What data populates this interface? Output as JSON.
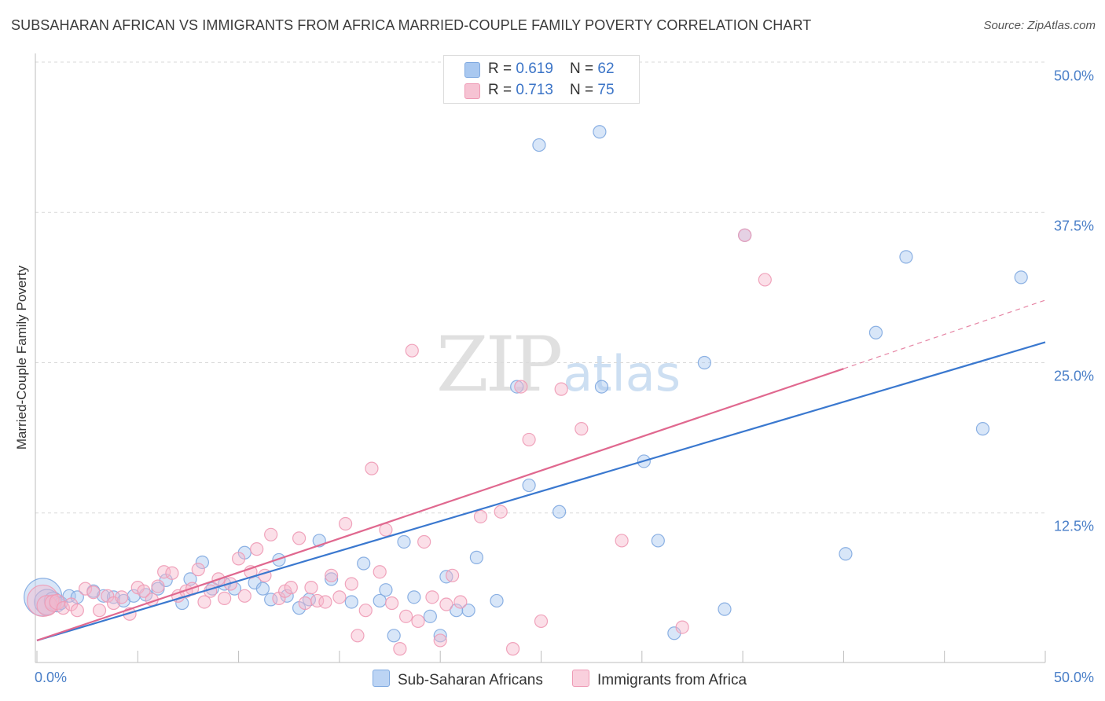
{
  "header": {
    "title": "SUBSAHARAN AFRICAN VS IMMIGRANTS FROM AFRICA MARRIED-COUPLE FAMILY POVERTY CORRELATION CHART",
    "source": "Source: ZipAtlas.com"
  },
  "legend_top": {
    "rows": [
      {
        "r_label": "R = ",
        "r_value": "0.619",
        "n_label": "N = ",
        "n_value": "62"
      },
      {
        "r_label": "R = ",
        "r_value": "0.713",
        "n_label": "N = ",
        "n_value": "75"
      }
    ]
  },
  "legend_bottom": {
    "series1": "Sub-Saharan Africans",
    "series2": "Immigrants from Africa"
  },
  "watermark": {
    "zip": "ZIP",
    "atlas": "atlas"
  },
  "chart_data": {
    "type": "scatter",
    "title": "SUBSAHARAN AFRICAN VS IMMIGRANTS FROM AFRICA MARRIED-COUPLE FAMILY POVERTY CORRELATION CHART",
    "xlabel": "",
    "ylabel": "Married-Couple Family Poverty",
    "xlim": [
      0,
      50
    ],
    "ylim": [
      0,
      50
    ],
    "x_tick_labels": [
      "0.0%",
      "50.0%"
    ],
    "y_ticks": [
      12.5,
      25.0,
      37.5,
      50.0
    ],
    "y_tick_labels": [
      "12.5%",
      "25.0%",
      "37.5%",
      "50.0%"
    ],
    "grid": true,
    "colors": {
      "series1": "#a9c8f0",
      "series1_line": "#3a78cf",
      "series2": "#f6b8cb",
      "series2_line": "#e0688f",
      "tick_text": "#4a7fc8"
    },
    "series": [
      {
        "name": "Sub-Saharan Africans",
        "r": 0.619,
        "n": 62,
        "trend": {
          "x0": 0,
          "y0": 1.9,
          "x1": 50,
          "y1": 26.7
        },
        "points": [
          [
            0.3,
            5.5,
            3
          ],
          [
            0.5,
            5.1,
            2
          ],
          [
            0.8,
            5.2,
            1.4
          ],
          [
            1.0,
            4.9,
            1.2
          ],
          [
            1.2,
            5.0,
            1
          ],
          [
            1.6,
            5.6,
            1
          ],
          [
            2.0,
            5.5,
            1
          ],
          [
            2.8,
            6.0,
            1
          ],
          [
            3.3,
            5.6,
            1
          ],
          [
            3.8,
            5.5,
            1
          ],
          [
            4.3,
            5.2,
            1
          ],
          [
            4.8,
            5.6,
            1
          ],
          [
            5.4,
            5.7,
            1
          ],
          [
            6.0,
            6.2,
            1
          ],
          [
            6.4,
            6.9,
            1
          ],
          [
            7.2,
            5.0,
            1
          ],
          [
            7.6,
            7.0,
            1
          ],
          [
            8.2,
            8.4,
            1
          ],
          [
            8.7,
            6.2,
            1
          ],
          [
            9.3,
            6.6,
            1
          ],
          [
            9.8,
            6.2,
            1
          ],
          [
            10.3,
            9.2,
            1
          ],
          [
            10.8,
            6.7,
            1
          ],
          [
            11.2,
            6.2,
            1
          ],
          [
            11.6,
            5.3,
            1
          ],
          [
            12.0,
            8.6,
            1
          ],
          [
            12.4,
            5.6,
            1
          ],
          [
            13.0,
            4.6,
            1
          ],
          [
            13.5,
            5.3,
            1
          ],
          [
            14.0,
            10.2,
            1
          ],
          [
            14.6,
            7.0,
            1
          ],
          [
            15.6,
            5.1,
            1
          ],
          [
            16.2,
            8.3,
            1
          ],
          [
            17.0,
            5.2,
            1
          ],
          [
            17.3,
            6.1,
            1
          ],
          [
            17.7,
            2.3,
            1
          ],
          [
            18.2,
            10.1,
            1
          ],
          [
            18.7,
            5.5,
            1
          ],
          [
            19.5,
            3.9,
            1
          ],
          [
            20.0,
            2.3,
            1
          ],
          [
            20.3,
            7.2,
            1
          ],
          [
            20.8,
            4.4,
            1
          ],
          [
            21.4,
            4.4,
            1
          ],
          [
            21.8,
            8.8,
            1
          ],
          [
            22.8,
            5.2,
            1
          ],
          [
            23.8,
            23.0,
            1
          ],
          [
            24.4,
            14.8,
            1
          ],
          [
            24.9,
            43.1,
            1
          ],
          [
            25.9,
            12.6,
            1
          ],
          [
            27.9,
            44.2,
            1
          ],
          [
            28.0,
            23.0,
            1
          ],
          [
            30.1,
            16.8,
            1
          ],
          [
            30.8,
            10.2,
            1
          ],
          [
            31.6,
            2.5,
            1
          ],
          [
            33.1,
            25.0,
            1
          ],
          [
            34.1,
            4.5,
            1
          ],
          [
            35.1,
            35.6,
            1
          ],
          [
            40.1,
            9.1,
            1
          ],
          [
            41.6,
            27.5,
            1
          ],
          [
            43.1,
            33.8,
            1
          ],
          [
            46.9,
            19.5,
            1
          ],
          [
            48.8,
            32.1,
            1
          ]
        ]
      },
      {
        "name": "Immigrants from Africa",
        "r": 0.713,
        "n": 75,
        "trend": {
          "x0": 0,
          "y0": 1.9,
          "x1": 40,
          "y1": 24.5,
          "dash_to_x": 50,
          "dash_to_y": 30.2
        },
        "points": [
          [
            0.3,
            5.2,
            2.5
          ],
          [
            0.5,
            4.8,
            1.6
          ],
          [
            0.8,
            5.0,
            1.3
          ],
          [
            1.0,
            5.1,
            1.2
          ],
          [
            1.3,
            4.6,
            1
          ],
          [
            1.7,
            4.9,
            1
          ],
          [
            2.0,
            4.4,
            1
          ],
          [
            2.4,
            6.2,
            1
          ],
          [
            2.8,
            5.9,
            1
          ],
          [
            3.1,
            4.4,
            1
          ],
          [
            3.5,
            5.6,
            1
          ],
          [
            3.8,
            5.0,
            1
          ],
          [
            4.2,
            5.5,
            1
          ],
          [
            4.6,
            4.1,
            1
          ],
          [
            5.0,
            6.3,
            1
          ],
          [
            5.3,
            6.0,
            1
          ],
          [
            5.7,
            5.3,
            1
          ],
          [
            6.0,
            6.4,
            1
          ],
          [
            6.3,
            7.6,
            1
          ],
          [
            6.7,
            7.5,
            1
          ],
          [
            7.0,
            5.6,
            1
          ],
          [
            7.4,
            6.0,
            1
          ],
          [
            7.7,
            6.2,
            1
          ],
          [
            8.0,
            7.8,
            1
          ],
          [
            8.3,
            5.1,
            1
          ],
          [
            8.6,
            6.0,
            1
          ],
          [
            9.0,
            7.0,
            1
          ],
          [
            9.3,
            5.4,
            1
          ],
          [
            9.6,
            6.6,
            1
          ],
          [
            10.0,
            8.7,
            1
          ],
          [
            10.3,
            5.6,
            1
          ],
          [
            10.6,
            7.6,
            1
          ],
          [
            10.9,
            9.5,
            1
          ],
          [
            11.3,
            7.3,
            1
          ],
          [
            11.6,
            10.7,
            1
          ],
          [
            12.0,
            5.4,
            1
          ],
          [
            12.3,
            6.0,
            1
          ],
          [
            12.6,
            6.3,
            1
          ],
          [
            13.0,
            10.4,
            1
          ],
          [
            13.3,
            5.0,
            1
          ],
          [
            13.6,
            6.3,
            1
          ],
          [
            13.9,
            5.2,
            1
          ],
          [
            14.3,
            5.1,
            1
          ],
          [
            14.6,
            7.3,
            1
          ],
          [
            15.0,
            5.5,
            1
          ],
          [
            15.3,
            11.6,
            1
          ],
          [
            15.6,
            6.6,
            1
          ],
          [
            15.9,
            2.3,
            1
          ],
          [
            16.3,
            4.4,
            1
          ],
          [
            16.6,
            16.2,
            1
          ],
          [
            17.0,
            7.6,
            1
          ],
          [
            17.3,
            11.1,
            1
          ],
          [
            17.6,
            5.0,
            1
          ],
          [
            18.0,
            1.2,
            1
          ],
          [
            18.3,
            3.9,
            1
          ],
          [
            18.6,
            26.0,
            1
          ],
          [
            18.9,
            3.5,
            1
          ],
          [
            19.2,
            10.1,
            1
          ],
          [
            19.6,
            5.5,
            1
          ],
          [
            20.0,
            1.9,
            1
          ],
          [
            20.3,
            4.9,
            1
          ],
          [
            20.6,
            7.3,
            1
          ],
          [
            21.0,
            5.1,
            1
          ],
          [
            22.0,
            12.2,
            1
          ],
          [
            23.0,
            12.6,
            1
          ],
          [
            23.6,
            1.2,
            1
          ],
          [
            24.0,
            23.0,
            1
          ],
          [
            24.4,
            18.6,
            1
          ],
          [
            25.0,
            3.5,
            1
          ],
          [
            26.0,
            22.8,
            1
          ],
          [
            27.0,
            19.5,
            1
          ],
          [
            29.0,
            10.2,
            1
          ],
          [
            32.0,
            3.0,
            1
          ],
          [
            35.1,
            35.6,
            1
          ],
          [
            36.1,
            31.9,
            1
          ]
        ]
      }
    ]
  }
}
